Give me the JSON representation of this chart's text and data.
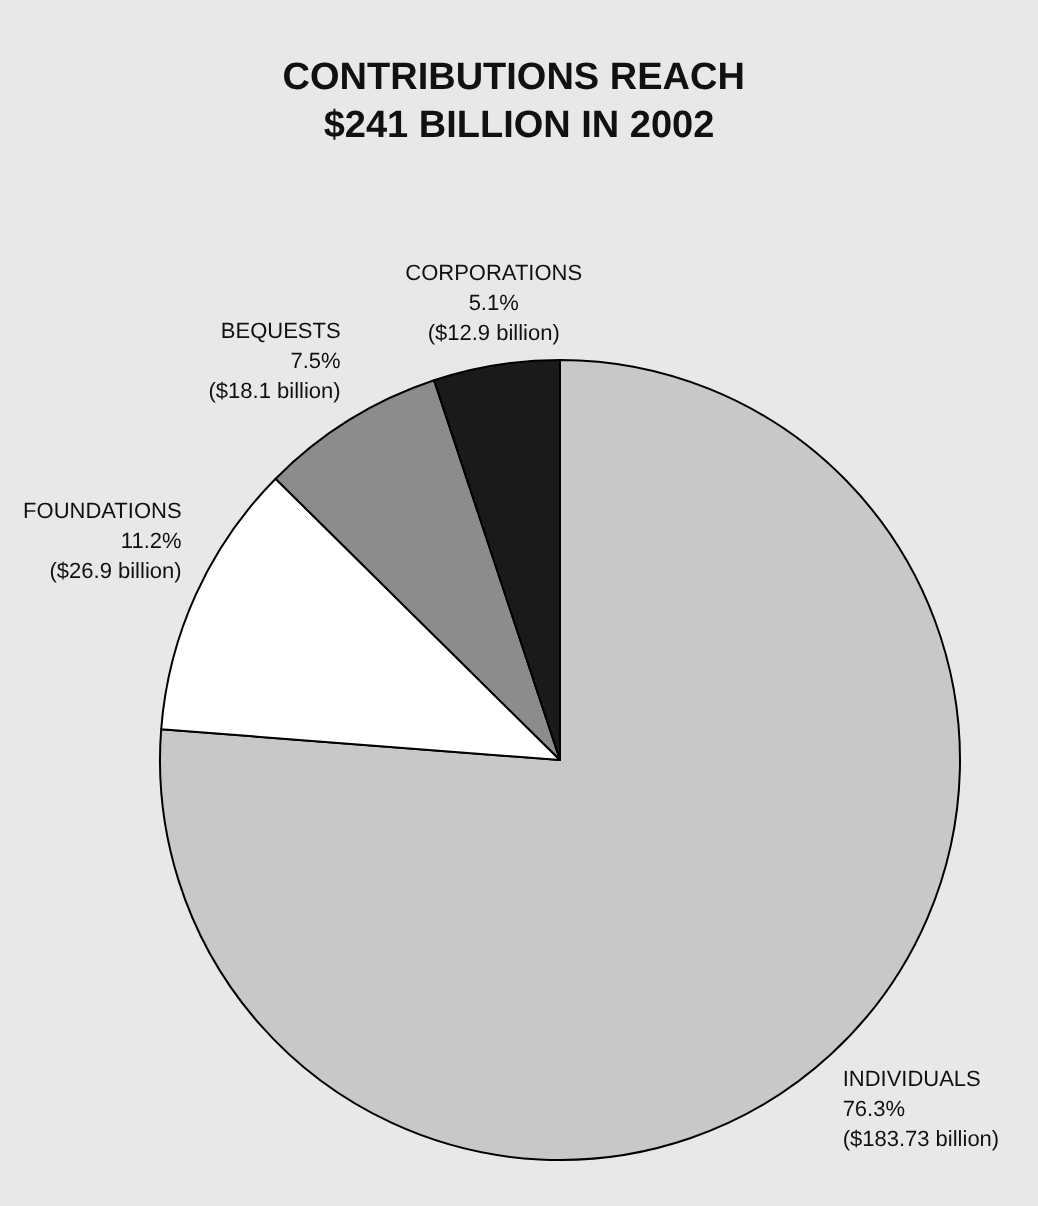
{
  "chart_data": {
    "type": "pie",
    "title": "CONTRIBUTIONS REACH $241 BILLION IN 2002",
    "categories": [
      "INDIVIDUALS",
      "FOUNDATIONS",
      "BEQUESTS",
      "CORPORATIONS"
    ],
    "values": [
      76.3,
      11.2,
      7.5,
      5.1
    ],
    "value_labels": [
      "76.3%\n($183.73 billion)",
      "11.2%\n($26.9 billion)",
      "7.5%\n($18.1 billion)",
      "5.1%\n($12.9 billion)"
    ],
    "colors": [
      "#c8c8c8",
      "#ffffff",
      "#8c8c8c",
      "#1a1a1a"
    ]
  }
}
